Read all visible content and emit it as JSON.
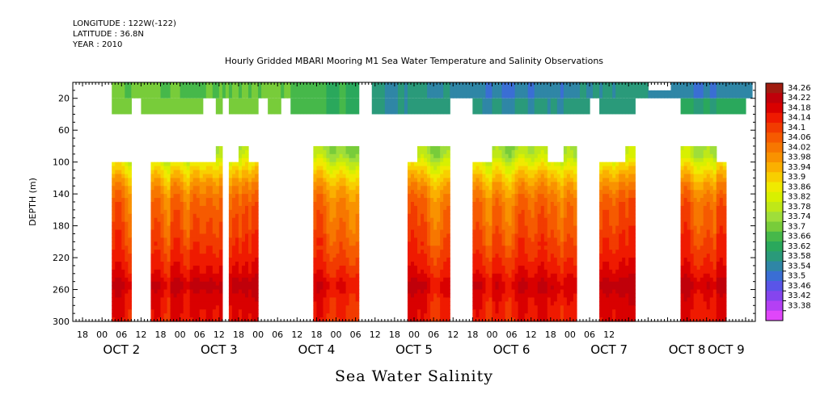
{
  "header": {
    "longitude": "LONGITUDE : 122W(-122)",
    "latitude": "LATITUDE : 36.8N",
    "year": "YEAR : 2010",
    "plot_title": "Hourly Gridded MBARI Mooring M1 Sea Water Temperature and Salinity Observations"
  },
  "footer": {
    "variable_title": "Sea Water Salinity"
  },
  "chart_data": {
    "type": "heatmap",
    "title": "Hourly Gridded MBARI Mooring M1 Sea Water Temperature and Salinity Observations",
    "xlabel": "",
    "ylabel": "DEPTH (m)",
    "variable": "Sea Water Salinity",
    "x_range_hours": [
      -9,
      201
    ],
    "x_tick_labels": [
      "18",
      "00",
      "06",
      "12",
      "18",
      "00",
      "06",
      "12",
      "18",
      "00",
      "06",
      "12",
      "18",
      "00",
      "06",
      "12",
      "18",
      "00",
      "06",
      "12",
      "18",
      "00",
      "06",
      "12",
      "18",
      "00",
      "06",
      "12"
    ],
    "x_date_labels": [
      "OCT 2",
      "OCT 3",
      "OCT 4",
      "OCT 5",
      "OCT 6",
      "OCT 7",
      "OCT 8",
      "OCT 9"
    ],
    "y_ticks": [
      20,
      60,
      100,
      140,
      180,
      220,
      260,
      300
    ],
    "y_range": [
      300,
      0
    ],
    "colorbar_levels": [
      "34.26",
      "34.22",
      "34.18",
      "34.14",
      "34.1",
      "34.06",
      "34.02",
      "33.98",
      "33.94",
      "33.9",
      "33.86",
      "33.82",
      "33.78",
      "33.74",
      "33.7",
      "33.66",
      "33.62",
      "33.58",
      "33.54",
      "33.5",
      "33.46",
      "33.42",
      "33.38"
    ],
    "colorbar_colors": [
      "#a01c10",
      "#c0000a",
      "#d90000",
      "#ef1a00",
      "#f23b00",
      "#f65a00",
      "#f77700",
      "#f99200",
      "#fbb000",
      "#f8cf00",
      "#f0ea00",
      "#d8f000",
      "#bfe818",
      "#9fde3a",
      "#78cc3a",
      "#46b84a",
      "#2aa85c",
      "#2a9a7a",
      "#2f86a6",
      "#3a6ed4",
      "#5a55e8",
      "#8545ee",
      "#b440f4",
      "#e046fa"
    ],
    "depth_profile": [
      {
        "depth": 10,
        "value": 33.7
      },
      {
        "depth": 30,
        "value": 33.72
      },
      {
        "depth": 90,
        "value": 33.78
      },
      {
        "depth": 110,
        "value": 33.9
      },
      {
        "depth": 130,
        "value": 33.99
      },
      {
        "depth": 150,
        "value": 34.05
      },
      {
        "depth": 180,
        "value": 34.08
      },
      {
        "depth": 210,
        "value": 34.12
      },
      {
        "depth": 240,
        "value": 34.17
      },
      {
        "depth": 255,
        "value": 34.22
      },
      {
        "depth": 270,
        "value": 34.18
      },
      {
        "depth": 300,
        "value": 34.16
      }
    ],
    "segments": [
      {
        "start": 3,
        "end": 9,
        "top": 0,
        "s20": 33.7,
        "s30": 33.72,
        "deep_top": 100,
        "shift": 0.0
      },
      {
        "start": 9,
        "end": 12,
        "top": 0,
        "s20": 33.7,
        "s30": null,
        "deep_top": null,
        "shift": 0.0
      },
      {
        "start": 12,
        "end": 15,
        "top": 0,
        "s20": 33.7,
        "s30": 33.72,
        "deep_top": null,
        "shift": 0.0
      },
      {
        "start": 15,
        "end": 21,
        "top": 0,
        "s20": 33.7,
        "s30": 33.72,
        "deep_top": 100,
        "shift": 0.0
      },
      {
        "start": 21,
        "end": 27,
        "top": 0,
        "s20": 33.7,
        "s30": 33.72,
        "deep_top": 100,
        "shift": 0.02
      },
      {
        "start": 27,
        "end": 31,
        "top": 0,
        "s20": 33.69,
        "s30": 33.71,
        "deep_top": 100,
        "shift": 0.02
      },
      {
        "start": 31,
        "end": 35,
        "top": 0,
        "s20": 33.7,
        "s30": null,
        "deep_top": 100,
        "shift": 0.02
      },
      {
        "start": 35,
        "end": 37,
        "top": 0,
        "s20": 33.7,
        "s30": 33.72,
        "deep_top": 80,
        "shift": 0.02
      },
      {
        "start": 37,
        "end": 39,
        "top": 0,
        "s20": 33.7,
        "s30": null,
        "deep_top": null,
        "shift": 0.02
      },
      {
        "start": 39,
        "end": 42,
        "top": 0,
        "s20": 33.7,
        "s30": 33.72,
        "deep_top": 100,
        "shift": 0.02
      },
      {
        "start": 42,
        "end": 45,
        "top": 0,
        "s20": 33.7,
        "s30": 33.72,
        "deep_top": 80,
        "shift": 0.02
      },
      {
        "start": 45,
        "end": 48,
        "top": 0,
        "s20": 33.7,
        "s30": 33.72,
        "deep_top": 100,
        "shift": 0.02
      },
      {
        "start": 48,
        "end": 51,
        "top": 0,
        "s20": 33.7,
        "s30": null,
        "deep_top": null,
        "shift": 0.0
      },
      {
        "start": 51,
        "end": 55,
        "top": 0,
        "s20": 33.7,
        "s30": 33.72,
        "deep_top": null,
        "shift": 0.0
      },
      {
        "start": 55,
        "end": 58,
        "top": 0,
        "s20": 33.69,
        "s30": null,
        "deep_top": null,
        "shift": 0.0
      },
      {
        "start": 58,
        "end": 65,
        "top": 0,
        "s20": 33.68,
        "s30": 33.68,
        "deep_top": null,
        "shift": 0.0
      },
      {
        "start": 65,
        "end": 79,
        "top": 0,
        "s20": 33.66,
        "s30": 33.66,
        "deep_top": 80,
        "shift": -0.02
      },
      {
        "start": 83,
        "end": 94,
        "top": 0,
        "s20": 33.58,
        "s30": 33.58,
        "deep_top": null,
        "shift": 0.0
      },
      {
        "start": 94,
        "end": 97,
        "top": 0,
        "s20": 33.58,
        "s30": 33.58,
        "deep_top": 100,
        "shift": 0.0
      },
      {
        "start": 97,
        "end": 107,
        "top": 0,
        "s20": 33.58,
        "s30": 33.6,
        "deep_top": 80,
        "shift": -0.01
      },
      {
        "start": 107,
        "end": 114,
        "top": 0,
        "s20": 33.56,
        "s30": null,
        "deep_top": null,
        "shift": 0.0
      },
      {
        "start": 114,
        "end": 120,
        "top": 0,
        "s20": 33.55,
        "s30": 33.58,
        "deep_top": 100,
        "shift": 0.0
      },
      {
        "start": 120,
        "end": 137,
        "top": 0,
        "s20": 33.54,
        "s30": 33.58,
        "deep_top": 80,
        "shift": 0.0
      },
      {
        "start": 137,
        "end": 142,
        "top": 0,
        "s20": 33.55,
        "s30": 33.58,
        "deep_top": 100,
        "shift": 0.0
      },
      {
        "start": 142,
        "end": 146,
        "top": 0,
        "s20": 33.56,
        "s30": 33.6,
        "deep_top": 80,
        "shift": 0.0
      },
      {
        "start": 146,
        "end": 150,
        "top": 0,
        "s20": 33.58,
        "s30": 33.6,
        "deep_top": null,
        "shift": 0.0
      },
      {
        "start": 150,
        "end": 153,
        "top": 0,
        "s20": 33.58,
        "s30": null,
        "deep_top": null,
        "shift": 0.0
      },
      {
        "start": 153,
        "end": 158,
        "top": 0,
        "s20": 33.58,
        "s30": 33.6,
        "deep_top": 100,
        "shift": 0.02
      },
      {
        "start": 158,
        "end": 161,
        "top": 0,
        "s20": 33.58,
        "s30": 33.6,
        "deep_top": 100,
        "shift": 0.02
      },
      {
        "start": 161,
        "end": 164,
        "top": 0,
        "s20": 33.58,
        "s30": 33.6,
        "deep_top": 80,
        "shift": 0.02
      },
      {
        "start": 164,
        "end": 168,
        "top": 0,
        "s20": 33.58,
        "s30": null,
        "deep_top": null,
        "shift": 0.0
      },
      {
        "start": 168,
        "end": 175,
        "top": 10,
        "s20": 33.56,
        "s30": null,
        "deep_top": null,
        "shift": 0.0
      },
      {
        "start": 175,
        "end": 178,
        "top": 0,
        "s20": 33.56,
        "s30": null,
        "deep_top": null,
        "shift": 0.0
      },
      {
        "start": 178,
        "end": 189,
        "top": 0,
        "s20": 33.54,
        "s30": 33.62,
        "deep_top": 80,
        "shift": 0.0
      },
      {
        "start": 189,
        "end": 192,
        "top": 0,
        "s20": 33.56,
        "s30": 33.62,
        "deep_top": 100,
        "shift": 0.0
      },
      {
        "start": 192,
        "end": 198,
        "top": 0,
        "s20": 33.56,
        "s30": 33.64,
        "deep_top": null,
        "shift": 0.0
      },
      {
        "start": 198,
        "end": 200,
        "top": 0,
        "s20": 33.56,
        "s30": null,
        "deep_top": null,
        "shift": 0.0
      }
    ]
  }
}
